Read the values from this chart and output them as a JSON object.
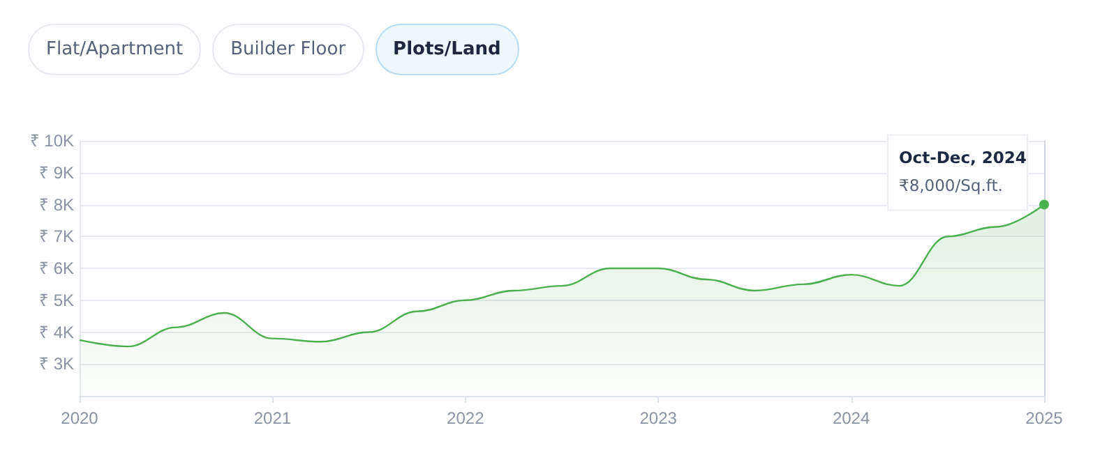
{
  "chart_data": {
    "type": "area",
    "x": [
      2020,
      2020.25,
      2020.5,
      2020.75,
      2021,
      2021.25,
      2021.5,
      2021.75,
      2022,
      2022.25,
      2022.5,
      2022.75,
      2023,
      2023.25,
      2023.5,
      2023.75,
      2024,
      2024.25,
      2024.5,
      2024.75,
      2025
    ],
    "series": [
      {
        "color": "#4caf50",
        "values": [
          3750,
          3550,
          4150,
          4600,
          3800,
          3700,
          4000,
          4650,
          5000,
          5300,
          5450,
          6000,
          6000,
          5650,
          5300,
          5500,
          5800,
          5450,
          7000,
          7300,
          8000
        ]
      }
    ],
    "xlim": [
      2020,
      2025
    ],
    "xticks": [
      2020,
      2021,
      2022,
      2023,
      2024,
      2025
    ],
    "ylim": [
      2000,
      10000
    ],
    "yticks": [
      {
        "value": 2000,
        "label": null
      },
      {
        "value": 3000,
        "label": "₹ 3K"
      },
      {
        "value": 4000,
        "label": "₹ 4K"
      },
      {
        "value": 5000,
        "label": "₹ 5K"
      },
      {
        "value": 6000,
        "label": "₹ 6K"
      },
      {
        "value": 7000,
        "label": "₹ 7K"
      },
      {
        "value": 8000,
        "label": "₹ 8K"
      },
      {
        "value": 9000,
        "label": "₹ 9K"
      },
      {
        "value": 10000,
        "label": "₹ 10K"
      }
    ],
    "grid": "y",
    "marker": "none",
    "line_style": "solid",
    "ref_lines": [
      {
        "axis": "x",
        "value": 2025,
        "color": "#d0d4dc"
      }
    ],
    "annotations": [
      "Flat/Apartment",
      "Builder Floor",
      "Plots/Land",
      {
        "text": "Oct-Dec, 2024\n₹8,000/Sq.ft.",
        "x": 2025,
        "y": 8000
      }
    ]
  }
}
